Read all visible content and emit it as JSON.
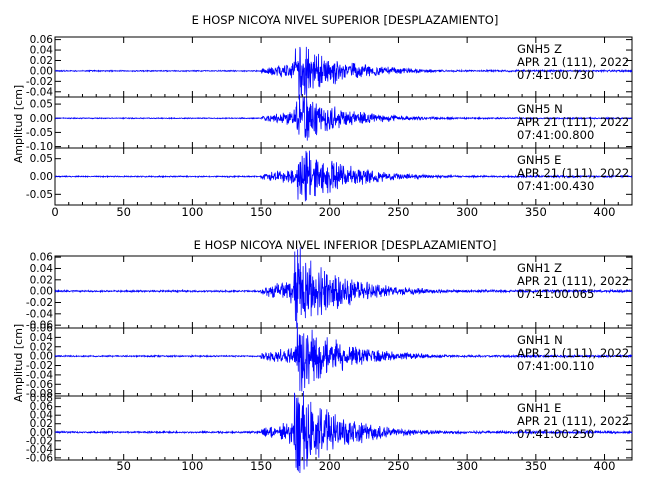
{
  "chart_data": [
    {
      "type": "line",
      "title": "E HOSP NICOYA NIVEL SUPERIOR [DESPLAZAMIENTO]",
      "ylabel": "Amplitud [cm]",
      "xlabel": "",
      "xlim": [
        0,
        420
      ],
      "xticks": [
        "0",
        "50",
        "100",
        "150",
        "200",
        "250",
        "300",
        "350",
        "400"
      ],
      "grid": false,
      "traces": [
        {
          "station": "GNH5",
          "component": "Z",
          "date": "APR 21 (111), 2022",
          "time": "07:41:00.730",
          "ylim": [
            -0.05,
            0.065
          ],
          "yticks": [
            "0.06",
            "0.04",
            "0.02",
            "0.00",
            "-0.02",
            "-0.04"
          ],
          "peak_amplitude": 0.045,
          "arrival_s": 150,
          "peak_s": 180
        },
        {
          "station": "GNH5",
          "component": "N",
          "date": "APR 21 (111), 2022",
          "time": "07:41:00.800",
          "ylim": [
            -0.105,
            0.075
          ],
          "yticks": [
            "0.05",
            "0.00",
            "-0.05",
            "-0.10"
          ],
          "peak_amplitude": 0.07,
          "arrival_s": 150,
          "peak_s": 180
        },
        {
          "station": "GNH5",
          "component": "E",
          "date": "APR 21 (111), 2022",
          "time": "07:41:00.430",
          "ylim": [
            -0.08,
            0.08
          ],
          "yticks": [
            "0.05",
            "0.00",
            "-0.05"
          ],
          "peak_amplitude": 0.07,
          "arrival_s": 150,
          "peak_s": 182
        }
      ]
    },
    {
      "type": "line",
      "title": "E HOSP NICOYA NIVEL INFERIOR [DESPLAZAMIENTO]",
      "ylabel": "Amplitud [cm]",
      "xlabel": "",
      "xlim": [
        0,
        420
      ],
      "xticks": [
        "50",
        "100",
        "150",
        "200",
        "250",
        "300",
        "350",
        "400"
      ],
      "grid": false,
      "traces": [
        {
          "station": "GNH1",
          "component": "Z",
          "date": "APR 21 (111), 2022",
          "time": "07:41:00.065",
          "ylim": [
            -0.065,
            0.062
          ],
          "yticks": [
            "0.06",
            "0.04",
            "0.02",
            "0.00",
            "-0.02",
            "-0.04",
            "-0.06"
          ],
          "peak_amplitude": 0.06,
          "arrival_s": 150,
          "peak_s": 180
        },
        {
          "station": "GNH1",
          "component": "N",
          "date": "APR 21 (111), 2022",
          "time": "07:41:00.110",
          "ylim": [
            -0.085,
            0.06
          ],
          "yticks": [
            "0.06",
            "0.04",
            "0.02",
            "0.00",
            "-0.02",
            "-0.04",
            "-0.06",
            "-0.08"
          ],
          "peak_amplitude": 0.06,
          "arrival_s": 150,
          "peak_s": 182
        },
        {
          "station": "GNH1",
          "component": "E",
          "date": "APR 21 (111), 2022",
          "time": "07:41:00.250",
          "ylim": [
            -0.065,
            0.085
          ],
          "yticks": [
            "0.08",
            "0.06",
            "0.04",
            "0.02",
            "0.00",
            "-0.02",
            "-0.04",
            "-0.06"
          ],
          "peak_amplitude": 0.08,
          "arrival_s": 150,
          "peak_s": 180
        }
      ]
    }
  ]
}
